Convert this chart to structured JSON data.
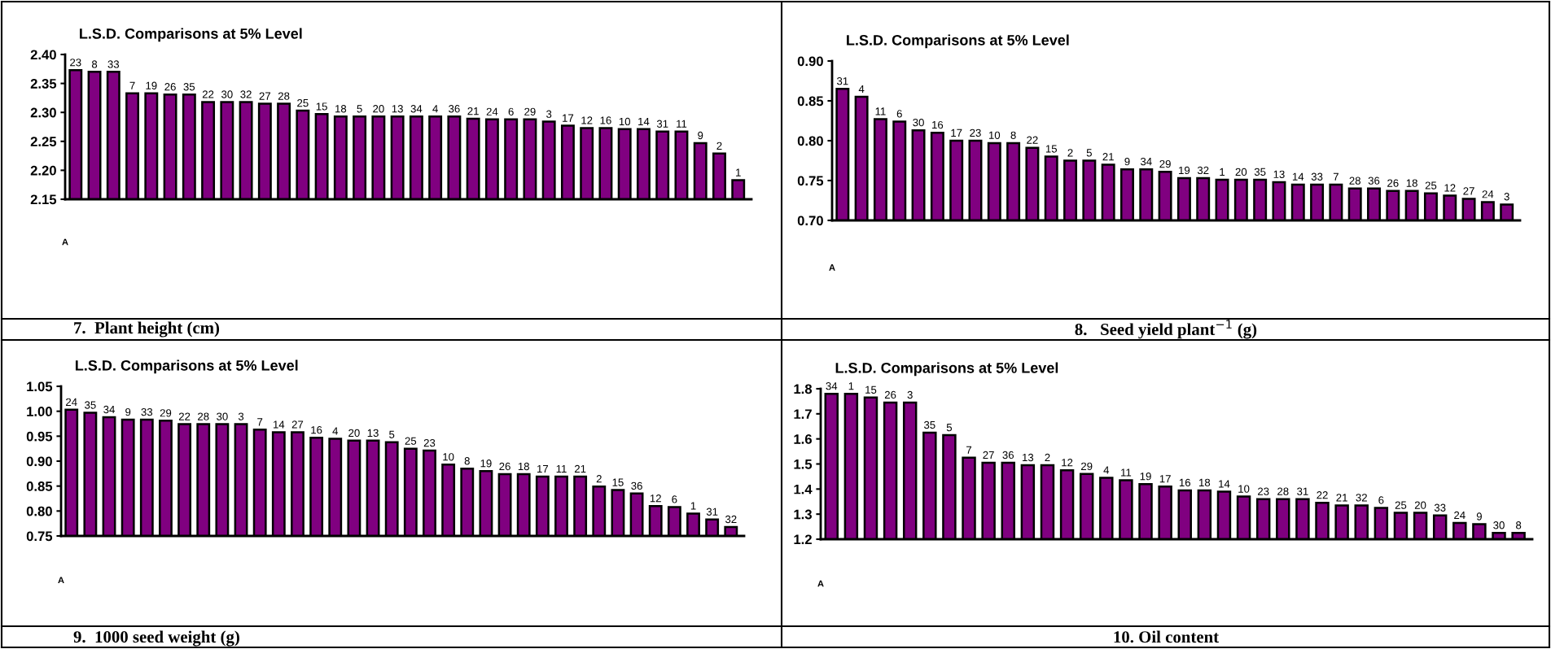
{
  "chart_data": [
    {
      "type": "bar",
      "title": "L.S.D. Comparisons at 5% Level",
      "xlabel": "7.  Plant height (cm)",
      "annotations": [
        "A"
      ],
      "color": "#800080",
      "ylim": [
        2.15,
        2.4
      ],
      "yticks": [
        2.15,
        {
          "value": 2.2,
          "label": "2.20"
        },
        2.25,
        {
          "value": 2.3,
          "label": "2.30"
        },
        2.35,
        {
          "value": 2.4,
          "label": "2.40"
        }
      ],
      "categories": [
        "23",
        "8",
        "33",
        "7",
        "19",
        "26",
        "35",
        "22",
        "30",
        "32",
        "27",
        "28",
        "25",
        "15",
        "18",
        "5",
        "20",
        "13",
        "34",
        "4",
        "36",
        "21",
        "24",
        "6",
        "29",
        "3",
        "17",
        "12",
        "16",
        "10",
        "14",
        "31",
        "11",
        "9",
        "2",
        "1"
      ],
      "values": [
        2.373,
        2.37,
        2.37,
        2.333,
        2.333,
        2.331,
        2.331,
        2.318,
        2.318,
        2.318,
        2.315,
        2.315,
        2.303,
        2.297,
        2.293,
        2.293,
        2.293,
        2.293,
        2.293,
        2.293,
        2.293,
        2.289,
        2.288,
        2.288,
        2.288,
        2.284,
        2.277,
        2.273,
        2.273,
        2.271,
        2.271,
        2.267,
        2.267,
        2.247,
        2.229,
        2.183
      ]
    },
    {
      "type": "bar",
      "title": "L.S.D. Comparisons at 5% Level",
      "xlabel": "8.   Seed yield plant$^{−1}$ (g)",
      "annotations": [
        "A"
      ],
      "color": "#800080",
      "ylim": [
        0.7,
        0.9
      ],
      "yticks": [
        {
          "value": 0.7,
          "label": "0.70"
        },
        0.75,
        {
          "value": 0.8,
          "label": "0.80"
        },
        0.85,
        {
          "value": 0.9,
          "label": "0.90"
        }
      ],
      "categories": [
        "31",
        "4",
        "11",
        "6",
        "30",
        "16",
        "17",
        "23",
        "10",
        "8",
        "22",
        "15",
        "2",
        "5",
        "21",
        "9",
        "34",
        "29",
        "19",
        "32",
        "1",
        "20",
        "35",
        "13",
        "14",
        "33",
        "7",
        "28",
        "36",
        "26",
        "18",
        "25",
        "12",
        "27",
        "24",
        "3"
      ],
      "values": [
        0.865,
        0.855,
        0.827,
        0.824,
        0.813,
        0.81,
        0.8,
        0.8,
        0.797,
        0.797,
        0.791,
        0.78,
        0.775,
        0.775,
        0.77,
        0.764,
        0.764,
        0.761,
        0.753,
        0.753,
        0.751,
        0.751,
        0.751,
        0.748,
        0.745,
        0.745,
        0.745,
        0.74,
        0.74,
        0.737,
        0.737,
        0.734,
        0.731,
        0.727,
        0.723,
        0.72
      ]
    },
    {
      "type": "bar",
      "title": "L.S.D. Comparisons at 5% Level",
      "xlabel": "9.  1000 seed weight (g)",
      "annotations": [
        "A"
      ],
      "color": "#800080",
      "ylim": [
        0.75,
        1.05
      ],
      "yticks": [
        0.75,
        {
          "value": 0.8,
          "label": "0.80"
        },
        0.85,
        {
          "value": 0.9,
          "label": "0.90"
        },
        0.95,
        {
          "value": 1.0,
          "label": "1.00"
        },
        1.05
      ],
      "categories": [
        "24",
        "35",
        "34",
        "9",
        "33",
        "29",
        "22",
        "28",
        "30",
        "3",
        "7",
        "14",
        "27",
        "16",
        "4",
        "20",
        "13",
        "5",
        "25",
        "23",
        "10",
        "8",
        "19",
        "26",
        "18",
        "17",
        "11",
        "21",
        "2",
        "15",
        "36",
        "12",
        "6",
        "1",
        "31",
        "32"
      ],
      "values": [
        1.003,
        0.997,
        0.988,
        0.983,
        0.983,
        0.981,
        0.974,
        0.974,
        0.974,
        0.974,
        0.963,
        0.958,
        0.958,
        0.947,
        0.945,
        0.941,
        0.941,
        0.938,
        0.925,
        0.921,
        0.893,
        0.885,
        0.88,
        0.874,
        0.874,
        0.869,
        0.869,
        0.869,
        0.849,
        0.842,
        0.835,
        0.81,
        0.808,
        0.795,
        0.783,
        0.768
      ]
    },
    {
      "type": "bar",
      "title": "L.S.D. Comparisons at 5% Level",
      "xlabel": "10. Oil content",
      "annotations": [
        "A"
      ],
      "color": "#800080",
      "ylim": [
        1.2,
        1.8
      ],
      "yticks": [
        1.2,
        1.3,
        1.4,
        1.5,
        1.6,
        1.7,
        1.8
      ],
      "categories": [
        "34",
        "1",
        "15",
        "26",
        "3",
        "35",
        "5",
        "7",
        "27",
        "36",
        "13",
        "2",
        "12",
        "29",
        "4",
        "11",
        "19",
        "17",
        "16",
        "18",
        "14",
        "10",
        "23",
        "28",
        "31",
        "22",
        "21",
        "32",
        "6",
        "25",
        "20",
        "33",
        "24",
        "9",
        "30",
        "8"
      ],
      "values": [
        1.78,
        1.78,
        1.765,
        1.745,
        1.745,
        1.625,
        1.615,
        1.525,
        1.505,
        1.505,
        1.495,
        1.495,
        1.475,
        1.46,
        1.445,
        1.435,
        1.42,
        1.41,
        1.395,
        1.395,
        1.39,
        1.37,
        1.36,
        1.36,
        1.36,
        1.345,
        1.335,
        1.335,
        1.325,
        1.305,
        1.305,
        1.295,
        1.265,
        1.26,
        1.225,
        1.225
      ]
    }
  ]
}
